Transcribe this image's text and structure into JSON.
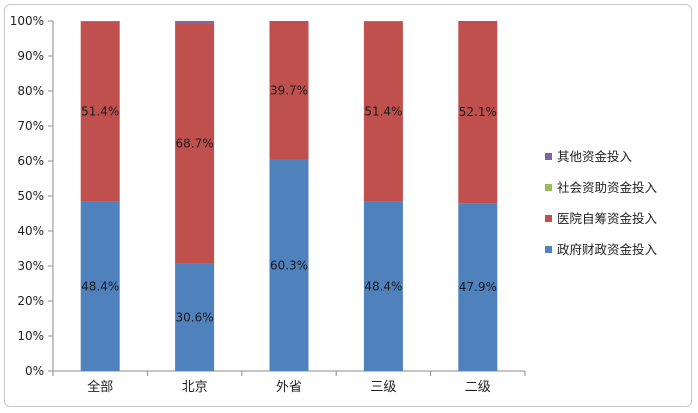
{
  "chart_data": {
    "type": "bar",
    "stacked": true,
    "percent": true,
    "categories": [
      "全部",
      "北京",
      "外省",
      "三级",
      "二级"
    ],
    "series": [
      {
        "name": "政府财政资金投入",
        "color": "#4f81bd",
        "values": [
          48.4,
          30.6,
          60.3,
          48.4,
          47.9
        ],
        "labels": [
          "48.4%",
          "30.6%",
          "60.3%",
          "48.4%",
          "47.9%"
        ]
      },
      {
        "name": "医院自筹资金投入",
        "color": "#c0504d",
        "values": [
          51.4,
          68.7,
          39.7,
          51.4,
          52.1
        ],
        "labels": [
          "51.4%",
          "68.7%",
          "39.7%",
          "51.4%",
          "52.1%"
        ]
      },
      {
        "name": "社会资助资金投入",
        "color": "#9bbb59",
        "values": [
          0,
          0,
          0,
          0,
          0
        ]
      },
      {
        "name": "其他资金投入",
        "color": "#8064a2",
        "values": [
          0.2,
          0.7,
          0,
          0.2,
          0
        ]
      }
    ],
    "legend_order": [
      3,
      2,
      1,
      0
    ],
    "ylim": [
      0,
      100
    ],
    "yticks": [
      "0%",
      "10%",
      "20%",
      "30%",
      "40%",
      "50%",
      "60%",
      "70%",
      "80%",
      "90%",
      "100%"
    ],
    "grid": false,
    "legend": "right"
  }
}
